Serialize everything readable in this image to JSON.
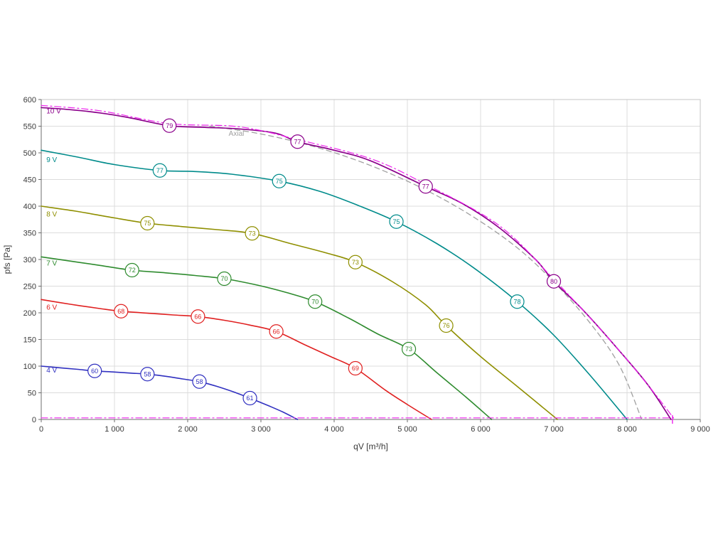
{
  "page": {
    "background": "#ffffff"
  },
  "chart_data": {
    "type": "line",
    "title": "",
    "xlabel": "qV [m³/h]",
    "ylabel": "pfs [Pa]",
    "xlim": [
      0,
      9000
    ],
    "ylim": [
      0,
      600
    ],
    "grid": true,
    "legend_position": "none",
    "x_ticks": [
      0,
      1000,
      2000,
      3000,
      4000,
      5000,
      6000,
      7000,
      8000,
      9000
    ],
    "x_tick_labels": [
      "0",
      "1 000",
      "2 000",
      "3 000",
      "4 000",
      "5 000",
      "6 000",
      "7 000",
      "8 000",
      "9 000"
    ],
    "y_ticks": [
      0,
      50,
      100,
      150,
      200,
      250,
      300,
      350,
      400,
      450,
      500,
      550,
      600
    ],
    "y_tick_labels": [
      "0",
      "50",
      "100",
      "150",
      "200",
      "250",
      "300",
      "350",
      "400",
      "450",
      "500",
      "550",
      "600"
    ],
    "colors": {
      "grid": "#dcdcdc",
      "border": "#c4c4c4",
      "axis": "#6e6e6e",
      "text": "#3a3a3a",
      "limit": "#ee22ee"
    },
    "series": [
      {
        "id": "axial-limit",
        "name": "Axial",
        "color": "#a0a0a0",
        "dash": "dashed",
        "width": 1.3,
        "label_pos": [
          2560,
          532
        ],
        "points": [
          [
            2300,
            550
          ],
          [
            2900,
            538
          ],
          [
            3500,
            520
          ],
          [
            4100,
            496
          ],
          [
            4700,
            465
          ],
          [
            5300,
            427
          ],
          [
            5900,
            380
          ],
          [
            6500,
            322
          ],
          [
            7000,
            258
          ],
          [
            7500,
            180
          ],
          [
            7900,
            100
          ],
          [
            8200,
            0
          ]
        ],
        "markers": []
      },
      {
        "id": "4v",
        "name": "4 V",
        "color": "#3030c0",
        "dash": "solid",
        "width": 1.6,
        "label_pos": [
          70,
          88
        ],
        "points": [
          [
            0,
            100
          ],
          [
            250,
            97
          ],
          [
            500,
            94
          ],
          [
            730,
            91
          ],
          [
            1000,
            89
          ],
          [
            1220,
            87
          ],
          [
            1450,
            85
          ],
          [
            1700,
            81
          ],
          [
            1930,
            76
          ],
          [
            2160,
            71
          ],
          [
            2400,
            62
          ],
          [
            2620,
            52
          ],
          [
            2850,
            40
          ],
          [
            3100,
            26
          ],
          [
            3300,
            14
          ],
          [
            3500,
            0
          ]
        ],
        "markers": [
          [
            730,
            91,
            "60"
          ],
          [
            1450,
            85,
            "58"
          ],
          [
            2160,
            71,
            "58"
          ],
          [
            2850,
            40,
            "61"
          ]
        ]
      },
      {
        "id": "6v",
        "name": "6 V",
        "color": "#e02020",
        "dash": "solid",
        "width": 1.6,
        "label_pos": [
          70,
          206
        ],
        "points": [
          [
            0,
            225
          ],
          [
            400,
            216
          ],
          [
            800,
            208
          ],
          [
            1090,
            203
          ],
          [
            1500,
            199
          ],
          [
            1800,
            196
          ],
          [
            2140,
            193
          ],
          [
            2500,
            186
          ],
          [
            2850,
            177
          ],
          [
            3210,
            165
          ],
          [
            3600,
            140
          ],
          [
            3950,
            118
          ],
          [
            4290,
            96
          ],
          [
            4700,
            55
          ],
          [
            5000,
            28
          ],
          [
            5330,
            0
          ]
        ],
        "markers": [
          [
            1090,
            203,
            "68"
          ],
          [
            2140,
            193,
            "66"
          ],
          [
            3210,
            165,
            "66"
          ],
          [
            4290,
            96,
            "69"
          ]
        ]
      },
      {
        "id": "7v",
        "name": "7 V",
        "color": "#2e8b2e",
        "dash": "solid",
        "width": 1.6,
        "label_pos": [
          70,
          289
        ],
        "points": [
          [
            0,
            305
          ],
          [
            400,
            297
          ],
          [
            800,
            289
          ],
          [
            1240,
            280
          ],
          [
            1700,
            275
          ],
          [
            2100,
            270
          ],
          [
            2500,
            264
          ],
          [
            2950,
            252
          ],
          [
            3350,
            238
          ],
          [
            3740,
            221
          ],
          [
            4200,
            190
          ],
          [
            4600,
            160
          ],
          [
            5020,
            132
          ],
          [
            5400,
            88
          ],
          [
            5800,
            42
          ],
          [
            6150,
            0
          ]
        ],
        "markers": [
          [
            1240,
            280,
            "72"
          ],
          [
            2500,
            264,
            "70"
          ],
          [
            3740,
            221,
            "70"
          ],
          [
            5020,
            132,
            "73"
          ]
        ]
      },
      {
        "id": "8v",
        "name": "8 V",
        "color": "#8f8f00",
        "dash": "solid",
        "width": 1.6,
        "label_pos": [
          70,
          381
        ],
        "points": [
          [
            0,
            400
          ],
          [
            500,
            390
          ],
          [
            1000,
            378
          ],
          [
            1450,
            368
          ],
          [
            1900,
            362
          ],
          [
            2400,
            356
          ],
          [
            2880,
            349
          ],
          [
            3400,
            330
          ],
          [
            3900,
            312
          ],
          [
            4290,
            295
          ],
          [
            4800,
            258
          ],
          [
            5250,
            215
          ],
          [
            5530,
            176
          ],
          [
            6000,
            118
          ],
          [
            6500,
            62
          ],
          [
            7050,
            0
          ]
        ],
        "markers": [
          [
            1450,
            368,
            "75"
          ],
          [
            2880,
            349,
            "73"
          ],
          [
            4290,
            295,
            "73"
          ],
          [
            5530,
            176,
            "76"
          ]
        ]
      },
      {
        "id": "9v",
        "name": "9 V",
        "color": "#008b8b",
        "dash": "solid",
        "width": 1.6,
        "label_pos": [
          70,
          483
        ],
        "points": [
          [
            0,
            505
          ],
          [
            500,
            492
          ],
          [
            1000,
            478
          ],
          [
            1620,
            467
          ],
          [
            2100,
            465
          ],
          [
            2600,
            460
          ],
          [
            3250,
            447
          ],
          [
            3800,
            428
          ],
          [
            4300,
            403
          ],
          [
            4850,
            371
          ],
          [
            5400,
            330
          ],
          [
            5900,
            285
          ],
          [
            6500,
            221
          ],
          [
            7000,
            158
          ],
          [
            7500,
            82
          ],
          [
            8000,
            0
          ]
        ],
        "markers": [
          [
            1620,
            467,
            "77"
          ],
          [
            3250,
            447,
            "75"
          ],
          [
            4850,
            371,
            "75"
          ],
          [
            6500,
            221,
            "78"
          ]
        ]
      },
      {
        "id": "10v",
        "name": "10 V",
        "color": "#8b008b",
        "dash": "solid",
        "width": 1.7,
        "label_pos": [
          70,
          574
        ],
        "points": [
          [
            0,
            585
          ],
          [
            400,
            581
          ],
          [
            800,
            575
          ],
          [
            1200,
            566
          ],
          [
            1750,
            551
          ],
          [
            2200,
            548
          ],
          [
            2700,
            545
          ],
          [
            3200,
            537
          ],
          [
            3500,
            521
          ],
          [
            4000,
            505
          ],
          [
            4500,
            485
          ],
          [
            5250,
            437
          ],
          [
            5750,
            405
          ],
          [
            6250,
            360
          ],
          [
            6750,
            300
          ],
          [
            7000,
            259
          ],
          [
            7400,
            205
          ],
          [
            7900,
            128
          ],
          [
            8300,
            62
          ],
          [
            8600,
            0
          ]
        ],
        "markers": [
          [
            1750,
            551,
            "79"
          ],
          [
            3500,
            521,
            "77"
          ],
          [
            5250,
            437,
            "77"
          ],
          [
            7000,
            259,
            "80"
          ]
        ]
      },
      {
        "id": "10v-overlay",
        "name": "",
        "color": "#ee22ee",
        "dash": "dashdot",
        "width": 1.2,
        "points": [
          [
            0,
            589
          ],
          [
            800,
            579
          ],
          [
            1750,
            555
          ],
          [
            2700,
            549
          ],
          [
            3500,
            525
          ],
          [
            4500,
            489
          ],
          [
            5250,
            441
          ],
          [
            6250,
            364
          ],
          [
            7000,
            263
          ],
          [
            7800,
            144
          ],
          [
            8300,
            62
          ],
          [
            8650,
            0
          ]
        ],
        "markers": []
      },
      {
        "id": "limit-bottom",
        "name": "",
        "color": "#ee22ee",
        "dash": "dashdot",
        "width": 1.2,
        "points": [
          [
            0,
            3
          ],
          [
            2200,
            3
          ],
          [
            4400,
            3
          ],
          [
            6600,
            3
          ],
          [
            8600,
            3
          ]
        ],
        "markers": []
      }
    ],
    "limit_end_tick": {
      "x": 8620
    }
  }
}
